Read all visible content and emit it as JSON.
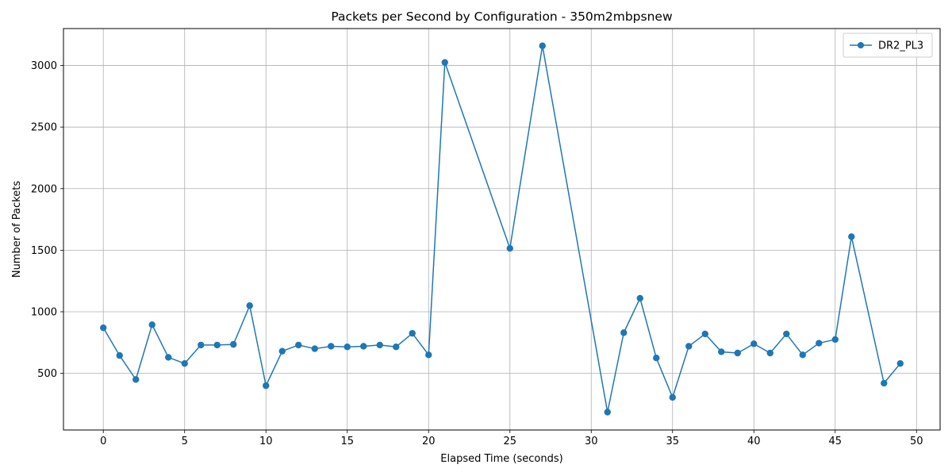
{
  "chart_data": {
    "type": "line",
    "title": "Packets per Second by Configuration - 350m2mbpsnew",
    "xlabel": "Elapsed Time (seconds)",
    "ylabel": "Number of Packets",
    "xlim": [
      -2.45,
      51.45
    ],
    "ylim": [
      40,
      3300
    ],
    "xticks": [
      0,
      5,
      10,
      15,
      20,
      25,
      30,
      35,
      40,
      45,
      50
    ],
    "yticks": [
      500,
      1000,
      1500,
      2000,
      2500,
      3000
    ],
    "grid": true,
    "legend_position": "top-right",
    "series": [
      {
        "name": "DR2_PL3",
        "color": "#1f77b4",
        "marker": "circle",
        "x": [
          0,
          1,
          2,
          3,
          4,
          5,
          6,
          7,
          8,
          9,
          10,
          11,
          12,
          13,
          14,
          15,
          16,
          17,
          18,
          19,
          20,
          21,
          25,
          27,
          31,
          32,
          33,
          34,
          35,
          36,
          37,
          38,
          39,
          40,
          41,
          42,
          43,
          44,
          45,
          46,
          48,
          49
        ],
        "y": [
          870,
          645,
          450,
          895,
          630,
          580,
          730,
          730,
          735,
          1050,
          400,
          680,
          730,
          700,
          720,
          715,
          720,
          730,
          715,
          825,
          650,
          3025,
          1515,
          3160,
          185,
          830,
          1110,
          625,
          305,
          720,
          820,
          675,
          665,
          740,
          665,
          820,
          650,
          745,
          775,
          1610,
          420,
          580
        ]
      }
    ]
  }
}
